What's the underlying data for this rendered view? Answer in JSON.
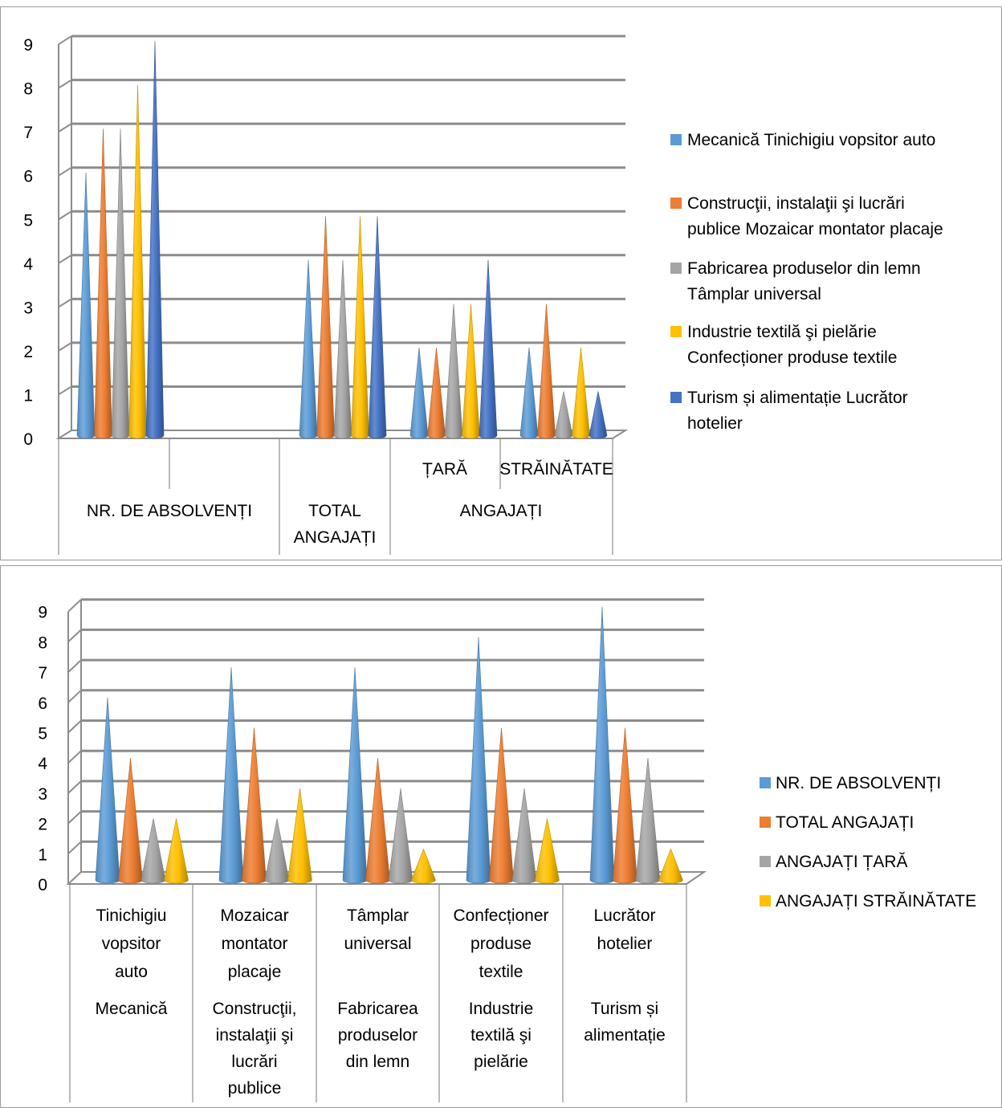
{
  "chart_data": [
    {
      "type": "bar",
      "bar_shape": "cone",
      "three_d": true,
      "categories": [
        "NR. DE ABSOLVENȚI",
        "TOTAL ANGAJAȚI",
        "ȚARĂ",
        "STRĂINĂTATE"
      ],
      "group_label": {
        "text": "ANGAJAȚI",
        "spans": [
          "ȚARĂ",
          "STRĂINĂTATE"
        ]
      },
      "series": [
        {
          "name": "Mecanică Tinichigiu vopsitor auto",
          "values": [
            6,
            4,
            2,
            2
          ]
        },
        {
          "name": "Construcţii, instalaţii şi lucrări publice Mozaicar montator placaje",
          "values": [
            7,
            5,
            2,
            3
          ]
        },
        {
          "name": "Fabricarea produselor din lemn Tâmplar universal",
          "values": [
            7,
            4,
            3,
            1
          ]
        },
        {
          "name": "Industrie textilă şi pielărie Confecționer produse textile",
          "values": [
            8,
            5,
            3,
            2
          ]
        },
        {
          "name": "Turism și alimentație Lucrător hotelier",
          "values": [
            9,
            5,
            4,
            1
          ]
        }
      ],
      "colors": [
        "#5b9bd5",
        "#ed7d31",
        "#a5a5a5",
        "#ffc000",
        "#4472c4"
      ],
      "ylim": [
        0,
        9
      ],
      "yticks": [
        "0",
        "1",
        "2",
        "3",
        "4",
        "5",
        "6",
        "7",
        "8",
        "9"
      ],
      "grid": true,
      "legend_position": "right",
      "legend": [
        [
          "Mecanică Tinichigiu vopsitor auto"
        ],
        [
          "Construcţii, instalaţii şi lucrări",
          "publice Mozaicar montator placaje"
        ],
        [
          "Fabricarea produselor din lemn",
          "Tâmplar universal"
        ],
        [
          "Industrie textilă şi pielărie",
          "Confecționer produse textile"
        ],
        [
          "Turism și alimentație Lucrător",
          "hotelier"
        ]
      ]
    },
    {
      "type": "bar",
      "bar_shape": "cone",
      "three_d": true,
      "categories": [
        {
          "label": [
            "Tinichigiu",
            "vopsitor",
            "auto"
          ],
          "group": [
            "Mecanică"
          ]
        },
        {
          "label": [
            "Mozaicar",
            "montator",
            "placaje"
          ],
          "group": [
            "Construcţii,",
            "instalaţii şi",
            "lucrări",
            "publice"
          ]
        },
        {
          "label": [
            "Tâmplar",
            "universal"
          ],
          "group": [
            "Fabricarea",
            "produselor",
            "din lemn"
          ]
        },
        {
          "label": [
            "Confecționer",
            "produse",
            "textile"
          ],
          "group": [
            "Industrie",
            "textilă şi",
            "pielărie"
          ]
        },
        {
          "label": [
            "Lucrător",
            "hotelier"
          ],
          "group": [
            "Turism și",
            "alimentație"
          ]
        }
      ],
      "series": [
        {
          "name": "NR. DE ABSOLVENȚI",
          "values": [
            6,
            7,
            7,
            8,
            9
          ]
        },
        {
          "name": "TOTAL ANGAJAȚI",
          "values": [
            4,
            5,
            4,
            5,
            5
          ]
        },
        {
          "name": "ANGAJAȚI ȚARĂ",
          "values": [
            2,
            2,
            3,
            3,
            4
          ]
        },
        {
          "name": "ANGAJAȚI STRĂINĂTATE",
          "values": [
            2,
            3,
            1,
            2,
            1
          ]
        }
      ],
      "colors": [
        "#5b9bd5",
        "#ed7d31",
        "#a5a5a5",
        "#ffc000"
      ],
      "ylim": [
        0,
        9
      ],
      "yticks": [
        "0",
        "1",
        "2",
        "3",
        "4",
        "5",
        "6",
        "7",
        "8",
        "9"
      ],
      "grid": true,
      "legend_position": "right"
    }
  ]
}
